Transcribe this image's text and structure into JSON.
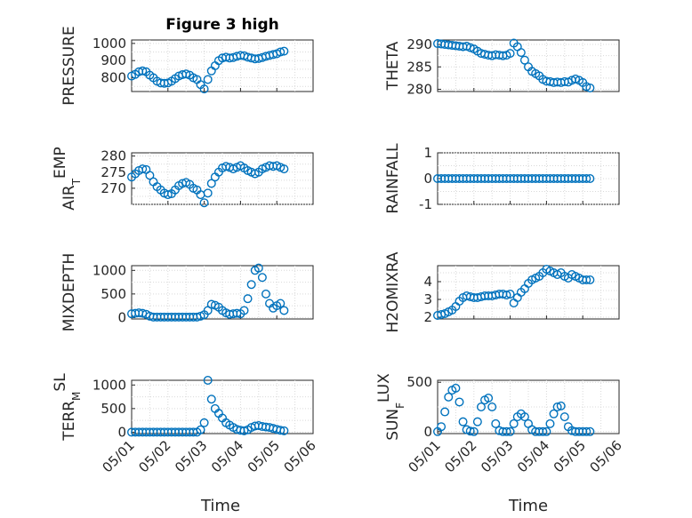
{
  "chart_data": [
    {
      "type": "scatter",
      "title": "Figure 3 high",
      "ylabel": "PRESSURE",
      "ylabel_sub": "",
      "xlim": [
        "05/01",
        "05/05"
      ],
      "ylim": [
        720,
        1020
      ],
      "yticks": [
        800,
        900,
        1000
      ],
      "x": [
        0.0,
        0.1,
        0.2,
        0.3,
        0.4,
        0.5,
        0.6,
        0.7,
        0.8,
        0.9,
        1.0,
        1.1,
        1.2,
        1.3,
        1.4,
        1.5,
        1.6,
        1.7,
        1.8,
        1.9,
        2.0,
        2.1,
        2.2,
        2.3,
        2.4,
        2.5,
        2.6,
        2.7,
        2.8,
        2.9,
        3.0,
        3.1,
        3.2,
        3.3,
        3.4,
        3.5,
        3.6,
        3.7,
        3.8,
        3.9,
        4.0,
        4.1,
        4.2
      ],
      "y": [
        810,
        820,
        835,
        840,
        835,
        815,
        800,
        780,
        770,
        768,
        770,
        780,
        795,
        810,
        818,
        822,
        815,
        800,
        790,
        760,
        735,
        790,
        840,
        870,
        900,
        915,
        920,
        915,
        918,
        925,
        930,
        928,
        920,
        915,
        910,
        912,
        918,
        925,
        930,
        935,
        940,
        950,
        955
      ]
    },
    {
      "type": "scatter",
      "title": "",
      "ylabel": "THETA",
      "ylabel_sub": "",
      "xlim": [
        "05/01",
        "05/05"
      ],
      "ylim": [
        279.5,
        291
      ],
      "yticks": [
        280,
        285,
        290
      ],
      "x": [
        0.0,
        0.1,
        0.2,
        0.3,
        0.4,
        0.5,
        0.6,
        0.7,
        0.8,
        0.9,
        1.0,
        1.1,
        1.2,
        1.3,
        1.4,
        1.5,
        1.6,
        1.7,
        1.8,
        1.9,
        2.0,
        2.1,
        2.2,
        2.3,
        2.4,
        2.5,
        2.6,
        2.7,
        2.8,
        2.9,
        3.0,
        3.1,
        3.2,
        3.3,
        3.4,
        3.5,
        3.6,
        3.7,
        3.8,
        3.9,
        4.0,
        4.1,
        4.2
      ],
      "y": [
        290.2,
        290.1,
        290.0,
        289.9,
        289.8,
        289.7,
        289.6,
        289.5,
        289.6,
        289.3,
        289.0,
        288.5,
        288.0,
        287.8,
        287.6,
        287.5,
        287.7,
        287.6,
        287.5,
        287.6,
        288.0,
        290.3,
        289.5,
        288.2,
        286.5,
        285.0,
        284.0,
        283.5,
        283.0,
        282.2,
        281.8,
        281.7,
        281.5,
        281.6,
        281.5,
        281.7,
        281.6,
        282.0,
        282.3,
        282.0,
        281.5,
        280.6,
        280.3
      ]
    },
    {
      "type": "scatter",
      "title": "",
      "ylabel": "AIR",
      "ylabel_sub": "T",
      "ylabel_after": "EMP",
      "xlim": [
        "05/01",
        "05/05"
      ],
      "ylim": [
        265,
        281
      ],
      "yticks": [
        270,
        275,
        280
      ],
      "x": [
        0.0,
        0.1,
        0.2,
        0.3,
        0.4,
        0.5,
        0.6,
        0.7,
        0.8,
        0.9,
        1.0,
        1.1,
        1.2,
        1.3,
        1.4,
        1.5,
        1.6,
        1.7,
        1.8,
        1.9,
        2.0,
        2.1,
        2.2,
        2.3,
        2.4,
        2.5,
        2.6,
        2.7,
        2.8,
        2.9,
        3.0,
        3.1,
        3.2,
        3.3,
        3.4,
        3.5,
        3.6,
        3.7,
        3.8,
        3.9,
        4.0,
        4.1,
        4.2
      ],
      "y": [
        273.5,
        274.5,
        275.5,
        276.0,
        275.8,
        274.0,
        272.0,
        270.5,
        269.5,
        268.5,
        268.0,
        268.3,
        269.5,
        270.8,
        271.5,
        271.8,
        271.2,
        270.0,
        269.5,
        268.0,
        265.5,
        268.5,
        271.5,
        273.5,
        275.0,
        276.3,
        276.8,
        276.5,
        276.0,
        276.5,
        277.0,
        276.3,
        275.5,
        275.0,
        274.5,
        275.0,
        276.0,
        276.5,
        277.0,
        276.8,
        277.0,
        276.5,
        276.0
      ]
    },
    {
      "type": "scatter",
      "title": "",
      "ylabel": "RAINFALL",
      "ylabel_sub": "",
      "xlim": [
        "05/01",
        "05/05"
      ],
      "ylim": [
        -1,
        1
      ],
      "yticks": [
        -1,
        0,
        1
      ],
      "x": [
        0.0,
        0.1,
        0.2,
        0.3,
        0.4,
        0.5,
        0.6,
        0.7,
        0.8,
        0.9,
        1.0,
        1.1,
        1.2,
        1.3,
        1.4,
        1.5,
        1.6,
        1.7,
        1.8,
        1.9,
        2.0,
        2.1,
        2.2,
        2.3,
        2.4,
        2.5,
        2.6,
        2.7,
        2.8,
        2.9,
        3.0,
        3.1,
        3.2,
        3.3,
        3.4,
        3.5,
        3.6,
        3.7,
        3.8,
        3.9,
        4.0,
        4.1,
        4.2
      ],
      "y": [
        0,
        0,
        0,
        0,
        0,
        0,
        0,
        0,
        0,
        0,
        0,
        0,
        0,
        0,
        0,
        0,
        0,
        0,
        0,
        0,
        0,
        0,
        0,
        0,
        0,
        0,
        0,
        0,
        0,
        0,
        0,
        0,
        0,
        0,
        0,
        0,
        0,
        0,
        0,
        0,
        0,
        0,
        0
      ]
    },
    {
      "type": "scatter",
      "title": "",
      "ylabel": "MIXDEPTH",
      "ylabel_sub": "",
      "xlim": [
        "05/01",
        "05/05"
      ],
      "ylim": [
        -30,
        1100
      ],
      "yticks": [
        0,
        500,
        1000
      ],
      "x": [
        0.0,
        0.1,
        0.2,
        0.3,
        0.4,
        0.5,
        0.6,
        0.7,
        0.8,
        0.9,
        1.0,
        1.1,
        1.2,
        1.3,
        1.4,
        1.5,
        1.6,
        1.7,
        1.8,
        1.9,
        2.0,
        2.1,
        2.2,
        2.3,
        2.4,
        2.5,
        2.6,
        2.7,
        2.8,
        2.9,
        3.0,
        3.1,
        3.2,
        3.3,
        3.4,
        3.5,
        3.6,
        3.7,
        3.8,
        3.9,
        4.0,
        4.1,
        4.2
      ],
      "y": [
        80,
        90,
        100,
        90,
        70,
        30,
        10,
        10,
        10,
        10,
        10,
        10,
        10,
        10,
        10,
        10,
        10,
        10,
        10,
        30,
        60,
        150,
        280,
        260,
        220,
        150,
        100,
        70,
        80,
        90,
        80,
        150,
        400,
        700,
        1000,
        1050,
        850,
        500,
        300,
        200,
        250,
        300,
        150
      ]
    },
    {
      "type": "scatter",
      "title": "",
      "ylabel": "H2OMIXRA",
      "ylabel_sub": "",
      "xlim": [
        "05/01",
        "05/05"
      ],
      "ylim": [
        1.9,
        4.9
      ],
      "yticks": [
        2,
        3,
        4
      ],
      "x": [
        0.0,
        0.1,
        0.2,
        0.3,
        0.4,
        0.5,
        0.6,
        0.7,
        0.8,
        0.9,
        1.0,
        1.1,
        1.2,
        1.3,
        1.4,
        1.5,
        1.6,
        1.7,
        1.8,
        1.9,
        2.0,
        2.1,
        2.2,
        2.3,
        2.4,
        2.5,
        2.6,
        2.7,
        2.8,
        2.9,
        3.0,
        3.1,
        3.2,
        3.3,
        3.4,
        3.5,
        3.6,
        3.7,
        3.8,
        3.9,
        4.0,
        4.1,
        4.2
      ],
      "y": [
        2.1,
        2.15,
        2.2,
        2.3,
        2.4,
        2.6,
        2.9,
        3.1,
        3.2,
        3.15,
        3.1,
        3.1,
        3.15,
        3.2,
        3.2,
        3.2,
        3.25,
        3.3,
        3.3,
        3.25,
        3.3,
        2.8,
        3.1,
        3.4,
        3.6,
        3.9,
        4.1,
        4.2,
        4.3,
        4.5,
        4.7,
        4.6,
        4.5,
        4.4,
        4.5,
        4.3,
        4.2,
        4.4,
        4.3,
        4.2,
        4.1,
        4.1,
        4.1
      ]
    },
    {
      "type": "scatter",
      "title": "",
      "ylabel": "TERR",
      "ylabel_sub": "M",
      "ylabel_after": "SL",
      "xlim": [
        "05/01",
        "05/05"
      ],
      "ylim": [
        -30,
        1100
      ],
      "yticks": [
        0,
        500,
        1000
      ],
      "x": [
        0.0,
        0.1,
        0.2,
        0.3,
        0.4,
        0.5,
        0.6,
        0.7,
        0.8,
        0.9,
        1.0,
        1.1,
        1.2,
        1.3,
        1.4,
        1.5,
        1.6,
        1.7,
        1.8,
        1.9,
        2.0,
        2.1,
        2.2,
        2.3,
        2.4,
        2.5,
        2.6,
        2.7,
        2.8,
        2.9,
        3.0,
        3.1,
        3.2,
        3.3,
        3.4,
        3.5,
        3.6,
        3.7,
        3.8,
        3.9,
        4.0,
        4.1,
        4.2
      ],
      "y": [
        0,
        0,
        0,
        0,
        0,
        0,
        0,
        0,
        0,
        0,
        0,
        0,
        0,
        0,
        0,
        0,
        0,
        0,
        0,
        50,
        200,
        1100,
        700,
        500,
        400,
        300,
        200,
        150,
        100,
        60,
        40,
        30,
        50,
        100,
        130,
        140,
        120,
        110,
        100,
        80,
        60,
        40,
        30
      ]
    },
    {
      "type": "scatter",
      "title": "",
      "ylabel": "SUN",
      "ylabel_sub": "F",
      "ylabel_after": "LUX",
      "xlim": [
        "05/01",
        "05/05"
      ],
      "ylim": [
        -20,
        520
      ],
      "yticks": [
        0,
        500
      ],
      "x": [
        0.0,
        0.1,
        0.2,
        0.3,
        0.4,
        0.5,
        0.6,
        0.7,
        0.8,
        0.9,
        1.0,
        1.1,
        1.2,
        1.3,
        1.4,
        1.5,
        1.6,
        1.7,
        1.8,
        1.9,
        2.0,
        2.1,
        2.2,
        2.3,
        2.4,
        2.5,
        2.6,
        2.7,
        2.8,
        2.9,
        3.0,
        3.1,
        3.2,
        3.3,
        3.4,
        3.5,
        3.6,
        3.7,
        3.8,
        3.9,
        4.0,
        4.1,
        4.2
      ],
      "y": [
        0,
        50,
        200,
        350,
        420,
        440,
        300,
        100,
        20,
        5,
        0,
        100,
        250,
        320,
        340,
        250,
        80,
        10,
        0,
        0,
        0,
        80,
        150,
        180,
        150,
        80,
        20,
        0,
        0,
        0,
        0,
        80,
        180,
        250,
        260,
        150,
        50,
        10,
        0,
        0,
        0,
        0,
        0
      ]
    }
  ],
  "x_tick_labels": [
    "05/01",
    "05/02",
    "05/03",
    "05/04",
    "05/05",
    "05/06"
  ],
  "x_label": "Time"
}
